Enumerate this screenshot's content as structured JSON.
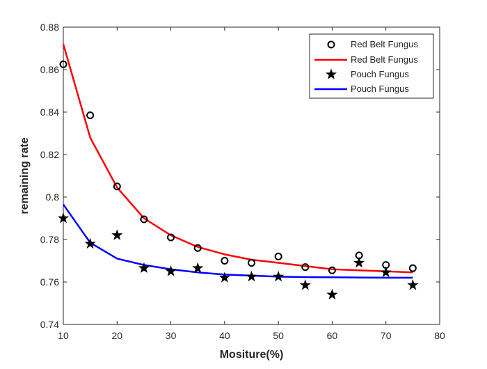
{
  "chart_data": {
    "type": "scatter",
    "xlabel": "Mositure(%)",
    "ylabel": "remaining rate",
    "xlim": [
      10,
      80
    ],
    "ylim": [
      0.74,
      0.88
    ],
    "xticks": [
      10,
      20,
      30,
      40,
      50,
      60,
      70,
      80
    ],
    "yticks": [
      0.74,
      0.76,
      0.78,
      0.8,
      0.82,
      0.84,
      0.86,
      0.88
    ],
    "grid": false,
    "legend_position": "top-right",
    "series": [
      {
        "name": "Red Belt Fungus",
        "kind": "markers",
        "marker": "circle",
        "color": "#000000",
        "x": [
          10,
          15,
          20,
          25,
          30,
          35,
          40,
          45,
          50,
          55,
          60,
          65,
          70,
          75
        ],
        "y": [
          0.8625,
          0.8385,
          0.805,
          0.7895,
          0.781,
          0.776,
          0.77,
          0.769,
          0.772,
          0.767,
          0.7655,
          0.7725,
          0.768,
          0.7665
        ]
      },
      {
        "name": "Red Belt Fungus",
        "kind": "line",
        "color": "#ff0000",
        "x": [
          10,
          15,
          20,
          25,
          30,
          35,
          40,
          45,
          50,
          55,
          60,
          65,
          70,
          75
        ],
        "y": [
          0.872,
          0.828,
          0.8045,
          0.79,
          0.782,
          0.7765,
          0.773,
          0.7705,
          0.769,
          0.7675,
          0.766,
          0.7655,
          0.765,
          0.7645
        ]
      },
      {
        "name": "Pouch Fungus",
        "kind": "markers",
        "marker": "star",
        "color": "#000000",
        "x": [
          10,
          15,
          20,
          25,
          30,
          35,
          40,
          45,
          50,
          55,
          60,
          65,
          70,
          75
        ],
        "y": [
          0.79,
          0.778,
          0.782,
          0.7665,
          0.765,
          0.7665,
          0.762,
          0.7625,
          0.7625,
          0.7585,
          0.754,
          0.769,
          0.7645,
          0.7585
        ]
      },
      {
        "name": "Pouch Fungus",
        "kind": "line",
        "color": "#0000ff",
        "x": [
          10,
          15,
          20,
          25,
          30,
          35,
          40,
          45,
          50,
          55,
          60,
          65,
          70,
          75
        ],
        "y": [
          0.7965,
          0.7785,
          0.771,
          0.768,
          0.766,
          0.7645,
          0.7635,
          0.763,
          0.7625,
          0.7623,
          0.7622,
          0.7621,
          0.762,
          0.762
        ]
      }
    ]
  }
}
